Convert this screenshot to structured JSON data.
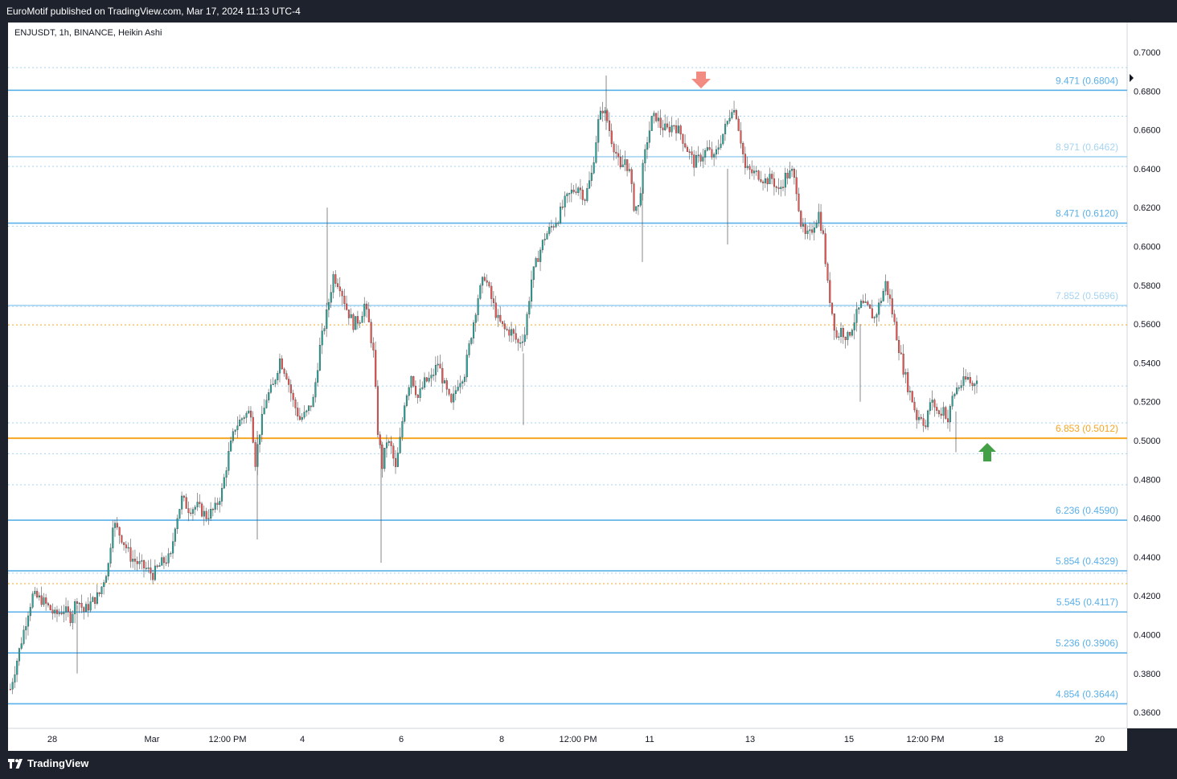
{
  "header": {
    "publisher": "EuroMotif published on TradingView.com, Mar 17, 2024 11:13 UTC-4"
  },
  "symbol": {
    "label": "ENJUSDT, 1h, BINANCE, Heikin Ashi"
  },
  "footer": {
    "brand": "TradingView",
    "logo_icon": "tradingview-logo-icon"
  },
  "colors": {
    "up": "#26a69a",
    "down": "#ef5350",
    "level_strong": "#5ab0e8",
    "level_light": "#a6d4f2",
    "level_orange": "#f5a623",
    "arrow_down": "#f28b82",
    "arrow_up": "#43a047"
  },
  "chart_data": {
    "type": "candlestick",
    "style": "Heikin Ashi",
    "ylim": [
      0.34,
      0.7169
    ],
    "y_ticks": [
      "0.7000",
      "0.6800",
      "0.6600",
      "0.6400",
      "0.6200",
      "0.6000",
      "0.5800",
      "0.5600",
      "0.5400",
      "0.5200",
      "0.5000",
      "0.4800",
      "0.4600",
      "0.4400",
      "0.4200",
      "0.4000",
      "0.3800",
      "0.3600"
    ],
    "x_ticks": [
      "28",
      "Mar",
      "12:00 PM",
      "4",
      "6",
      "8",
      "12:00 PM",
      "11",
      "13",
      "15",
      "12:00 PM",
      "18",
      "20"
    ],
    "levels": [
      {
        "label": "9.471 (0.6804)",
        "value": 0.6804,
        "style": "strong"
      },
      {
        "label": "8.971 (0.6462)",
        "value": 0.6462,
        "style": "light"
      },
      {
        "label": "8.471 (0.6120)",
        "value": 0.612,
        "style": "strong"
      },
      {
        "label": "7.852 (0.5696)",
        "value": 0.5696,
        "style": "light"
      },
      {
        "label": "6.853 (0.5012)",
        "value": 0.5012,
        "style": "orange"
      },
      {
        "label": "6.236 (0.4590)",
        "value": 0.459,
        "style": "strong"
      },
      {
        "label": "5.854 (0.4329)",
        "value": 0.4329,
        "style": "strong"
      },
      {
        "label": "5.545 (0.4117)",
        "value": 0.4117,
        "style": "strong"
      },
      {
        "label": "5.236 (0.3906)",
        "value": 0.3906,
        "style": "strong"
      },
      {
        "label": "4.854 (0.3644)",
        "value": 0.3644,
        "style": "strong"
      }
    ],
    "dotted_levels_blue": [
      0.6921,
      0.6671,
      0.6412,
      0.6104,
      0.5691,
      0.5281,
      0.5091,
      0.4932,
      0.4772,
      0.4317
    ],
    "dotted_levels_orange": [
      0.5596,
      0.4263
    ],
    "price_path": [
      [
        0,
        0.372
      ],
      [
        4,
        0.392
      ],
      [
        8,
        0.412
      ],
      [
        10,
        0.42
      ],
      [
        14,
        0.418
      ],
      [
        18,
        0.413
      ],
      [
        20,
        0.41
      ],
      [
        24,
        0.413
      ],
      [
        27,
        0.409
      ],
      [
        30,
        0.419
      ],
      [
        33,
        0.412
      ],
      [
        36,
        0.416
      ],
      [
        40,
        0.421
      ],
      [
        44,
        0.436
      ],
      [
        46,
        0.458
      ],
      [
        50,
        0.45
      ],
      [
        54,
        0.44
      ],
      [
        58,
        0.436
      ],
      [
        61,
        0.434
      ],
      [
        64,
        0.431
      ],
      [
        68,
        0.437
      ],
      [
        72,
        0.44
      ],
      [
        74,
        0.457
      ],
      [
        77,
        0.47
      ],
      [
        80,
        0.465
      ],
      [
        84,
        0.466
      ],
      [
        88,
        0.461
      ],
      [
        92,
        0.465
      ],
      [
        95,
        0.474
      ],
      [
        98,
        0.493
      ],
      [
        101,
        0.507
      ],
      [
        105,
        0.513
      ],
      [
        108,
        0.515
      ],
      [
        110,
        0.489
      ],
      [
        112,
        0.505
      ],
      [
        115,
        0.522
      ],
      [
        118,
        0.528
      ],
      [
        121,
        0.542
      ],
      [
        124,
        0.534
      ],
      [
        127,
        0.52
      ],
      [
        130,
        0.511
      ],
      [
        133,
        0.514
      ],
      [
        136,
        0.521
      ],
      [
        139,
        0.548
      ],
      [
        142,
        0.565
      ],
      [
        145,
        0.585
      ],
      [
        148,
        0.58
      ],
      [
        151,
        0.568
      ],
      [
        154,
        0.56
      ],
      [
        157,
        0.563
      ],
      [
        159,
        0.57
      ],
      [
        161,
        0.56
      ],
      [
        163,
        0.545
      ],
      [
        165,
        0.505
      ],
      [
        167,
        0.487
      ],
      [
        169,
        0.5
      ],
      [
        171,
        0.496
      ],
      [
        173,
        0.485
      ],
      [
        175,
        0.5
      ],
      [
        177,
        0.52
      ],
      [
        180,
        0.534
      ],
      [
        183,
        0.522
      ],
      [
        186,
        0.53
      ],
      [
        189,
        0.532
      ],
      [
        192,
        0.54
      ],
      [
        195,
        0.528
      ],
      [
        198,
        0.518
      ],
      [
        201,
        0.53
      ],
      [
        204,
        0.535
      ],
      [
        207,
        0.555
      ],
      [
        210,
        0.574
      ],
      [
        213,
        0.585
      ],
      [
        216,
        0.573
      ],
      [
        219,
        0.562
      ],
      [
        222,
        0.557
      ],
      [
        225,
        0.556
      ],
      [
        228,
        0.55
      ],
      [
        231,
        0.555
      ],
      [
        234,
        0.583
      ],
      [
        237,
        0.595
      ],
      [
        240,
        0.605
      ],
      [
        243,
        0.61
      ],
      [
        246,
        0.615
      ],
      [
        249,
        0.623
      ],
      [
        252,
        0.628
      ],
      [
        255,
        0.631
      ],
      [
        258,
        0.625
      ],
      [
        261,
        0.637
      ],
      [
        264,
        0.664
      ],
      [
        266,
        0.671
      ],
      [
        268,
        0.665
      ],
      [
        270,
        0.655
      ],
      [
        272,
        0.648
      ],
      [
        274,
        0.639
      ],
      [
        276,
        0.645
      ],
      [
        278,
        0.638
      ],
      [
        280,
        0.621
      ],
      [
        282,
        0.62
      ],
      [
        284,
        0.64
      ],
      [
        286,
        0.655
      ],
      [
        288,
        0.665
      ],
      [
        290,
        0.667
      ],
      [
        292,
        0.662
      ],
      [
        295,
        0.66
      ],
      [
        298,
        0.663
      ],
      [
        301,
        0.658
      ],
      [
        304,
        0.65
      ],
      [
        307,
        0.643
      ],
      [
        310,
        0.646
      ],
      [
        313,
        0.65
      ],
      [
        316,
        0.645
      ],
      [
        319,
        0.655
      ],
      [
        322,
        0.664
      ],
      [
        324,
        0.672
      ],
      [
        326,
        0.668
      ],
      [
        328,
        0.655
      ],
      [
        330,
        0.64
      ],
      [
        333,
        0.638
      ],
      [
        336,
        0.637
      ],
      [
        339,
        0.634
      ],
      [
        342,
        0.635
      ],
      [
        345,
        0.628
      ],
      [
        348,
        0.636
      ],
      [
        351,
        0.638
      ],
      [
        353,
        0.63
      ],
      [
        355,
        0.612
      ],
      [
        357,
        0.605
      ],
      [
        359,
        0.606
      ],
      [
        361,
        0.612
      ],
      [
        363,
        0.617
      ],
      [
        365,
        0.605
      ],
      [
        367,
        0.58
      ],
      [
        369,
        0.566
      ],
      [
        371,
        0.553
      ],
      [
        373,
        0.557
      ],
      [
        376,
        0.553
      ],
      [
        379,
        0.562
      ],
      [
        382,
        0.57
      ],
      [
        385,
        0.568
      ],
      [
        388,
        0.563
      ],
      [
        391,
        0.573
      ],
      [
        393,
        0.581
      ],
      [
        395,
        0.572
      ],
      [
        397,
        0.56
      ],
      [
        399,
        0.548
      ],
      [
        401,
        0.537
      ],
      [
        403,
        0.528
      ],
      [
        405,
        0.521
      ],
      [
        407,
        0.512
      ],
      [
        409,
        0.513
      ],
      [
        411,
        0.507
      ],
      [
        413,
        0.52
      ],
      [
        415,
        0.518
      ],
      [
        417,
        0.513
      ],
      [
        419,
        0.517
      ],
      [
        421,
        0.51
      ],
      [
        423,
        0.522
      ],
      [
        425,
        0.527
      ],
      [
        428,
        0.53
      ],
      [
        430,
        0.532
      ],
      [
        432,
        0.528
      ],
      [
        434,
        0.533
      ]
    ]
  }
}
